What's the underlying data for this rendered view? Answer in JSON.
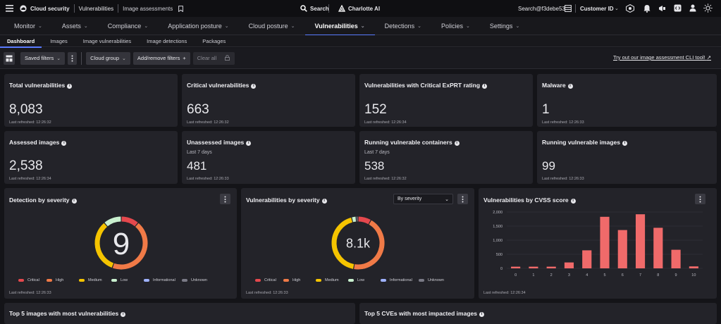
{
  "topbar": {
    "product": "Cloud security",
    "crumb1": "Vulnerabilities",
    "crumb2": "Image assessments",
    "search_label": "Search",
    "assistant_label": "Charlotte AI",
    "search_user": "Search@f3debe53",
    "customer_id_label": "Customer ID"
  },
  "nav": {
    "items": [
      {
        "label": "Monitor"
      },
      {
        "label": "Assets"
      },
      {
        "label": "Compliance"
      },
      {
        "label": "Application posture"
      },
      {
        "label": "Cloud posture"
      },
      {
        "label": "Vulnerabilities"
      },
      {
        "label": "Detections"
      },
      {
        "label": "Policies"
      },
      {
        "label": "Settings"
      }
    ]
  },
  "subtabs": {
    "items": [
      {
        "label": "Dashboard"
      },
      {
        "label": "Images"
      },
      {
        "label": "Image vulnerabilities"
      },
      {
        "label": "Image detections"
      },
      {
        "label": "Packages"
      }
    ]
  },
  "filters": {
    "saved": "Saved filters",
    "cloud_group": "Cloud group",
    "add_remove": "Add/remove filters",
    "clear_all": "Clear all",
    "cli_link": "Try out our image assessment CLI tool!"
  },
  "cards": [
    {
      "title": "Total vulnerabilities",
      "sub": "",
      "value": "8,083",
      "refreshed": "Last refreshed: 12:26:32"
    },
    {
      "title": "Critical vulnerabilities",
      "sub": "",
      "value": "663",
      "refreshed": "Last refreshed: 12:26:32"
    },
    {
      "title": "Vulnerabilities with Critical ExPRT rating",
      "sub": "",
      "value": "152",
      "refreshed": "Last refreshed: 12:26:34"
    },
    {
      "title": "Malware",
      "sub": "",
      "value": "1",
      "refreshed": "Last refreshed: 12:26:33"
    },
    {
      "title": "Assessed images",
      "sub": "",
      "value": "2,538",
      "refreshed": "Last refreshed: 12:26:34"
    },
    {
      "title": "Unassessed images",
      "sub": "Last 7 days",
      "value": "481",
      "refreshed": "Last refreshed: 12:26:33"
    },
    {
      "title": "Running vulnerable containers",
      "sub": "Last 7 days",
      "value": "538",
      "refreshed": "Last refreshed: 12:26:32"
    },
    {
      "title": "Running vulnerable images",
      "sub": "",
      "value": "99",
      "refreshed": "Last refreshed: 12:26:33"
    }
  ],
  "detection_severity": {
    "title": "Detection by severity",
    "center_value": "9",
    "refreshed": "Last refreshed: 12:26:33",
    "segments": [
      {
        "name": "Critical",
        "value": 1
      },
      {
        "name": "High",
        "value": 4
      },
      {
        "name": "Medium",
        "value": 3
      },
      {
        "name": "Low",
        "value": 1
      },
      {
        "name": "Informational",
        "value": 0
      },
      {
        "name": "Unknown",
        "value": 0
      }
    ]
  },
  "vuln_severity": {
    "title": "Vulnerabilities by severity",
    "select_value": "By severity",
    "center_value": "8.1k",
    "refreshed": "Last refreshed: 12:26:33",
    "segments": [
      {
        "name": "Critical",
        "value": 663
      },
      {
        "name": "High",
        "value": 3600
      },
      {
        "name": "Medium",
        "value": 3500
      },
      {
        "name": "Low",
        "value": 220
      },
      {
        "name": "Informational",
        "value": 0
      },
      {
        "name": "Unknown",
        "value": 100
      }
    ]
  },
  "legend_colors": {
    "Critical": "#e5484d",
    "High": "#f07a47",
    "Medium": "#f5c400",
    "Low": "#c9f0cf",
    "Informational": "#9fb2ff",
    "Unknown": "#7a7a86"
  },
  "cvss": {
    "title": "Vulnerabilities by CVSS score",
    "refreshed": "Last refreshed: 12:26:34",
    "chart_data": {
      "type": "bar",
      "categories": [
        "0",
        "1",
        "2",
        "3",
        "4",
        "5",
        "6",
        "7",
        "8",
        "9",
        "10"
      ],
      "values": [
        60,
        60,
        60,
        210,
        640,
        1830,
        1360,
        1920,
        1440,
        660,
        70
      ],
      "yticks": [
        "0",
        "500",
        "1,000",
        "1,500",
        "2,000"
      ],
      "ylim": [
        0,
        2000
      ],
      "color": "#f06a6a"
    }
  },
  "bottom": {
    "left_title": "Top 5 images with most vulnerabilities",
    "right_title": "Top 5 CVEs with most impacted images"
  }
}
